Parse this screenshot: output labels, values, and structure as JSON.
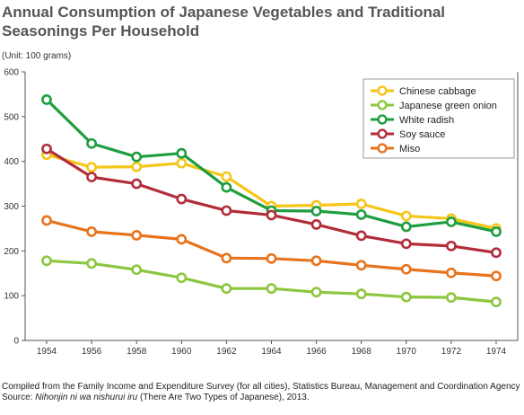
{
  "title": "Annual Consumption of Japanese Vegetables and Traditional Seasonings Per Household",
  "unit_label": "(Unit: 100 grams)",
  "footer": {
    "line1": "Compiled from the Family Income and Expenditure Survey (for all cities), Statistics Bureau, Management and Coordination Agency",
    "source_prefix": "Source: ",
    "source_title": "Nihonjin ni wa nishurui iru",
    "source_suffix": " (There Are Two Types of Japanese), 2013."
  },
  "chart_data": {
    "type": "line",
    "x": [
      1954,
      1956,
      1958,
      1960,
      1962,
      1964,
      1966,
      1968,
      1970,
      1972,
      1974
    ],
    "x_tick_labels": [
      "1954",
      "1956",
      "1958",
      "1960",
      "1962",
      "1964",
      "1966",
      "1968",
      "1970",
      "1972",
      "1974"
    ],
    "ylim": [
      0,
      600
    ],
    "y_ticks": [
      0,
      100,
      200,
      300,
      400,
      500,
      600
    ],
    "grid": false,
    "legend_position": "top-right",
    "series": [
      {
        "name": "Chinese cabbage",
        "color": "#f5c518",
        "values": [
          415,
          387,
          388,
          396,
          366,
          300,
          302,
          305,
          278,
          272,
          250
        ]
      },
      {
        "name": "Japanese green onion",
        "color": "#8dc63f",
        "values": [
          178,
          172,
          158,
          140,
          116,
          116,
          108,
          104,
          97,
          96,
          86
        ]
      },
      {
        "name": "White radish",
        "color": "#1e9e3e",
        "values": [
          538,
          440,
          410,
          418,
          342,
          290,
          289,
          281,
          254,
          265,
          243
        ]
      },
      {
        "name": "Soy sauce",
        "color": "#b22d3a",
        "values": [
          428,
          365,
          350,
          316,
          290,
          280,
          259,
          234,
          216,
          211,
          196
        ]
      },
      {
        "name": "Miso",
        "color": "#e8731d",
        "values": [
          268,
          243,
          235,
          226,
          184,
          183,
          178,
          168,
          159,
          151,
          144
        ]
      }
    ]
  }
}
